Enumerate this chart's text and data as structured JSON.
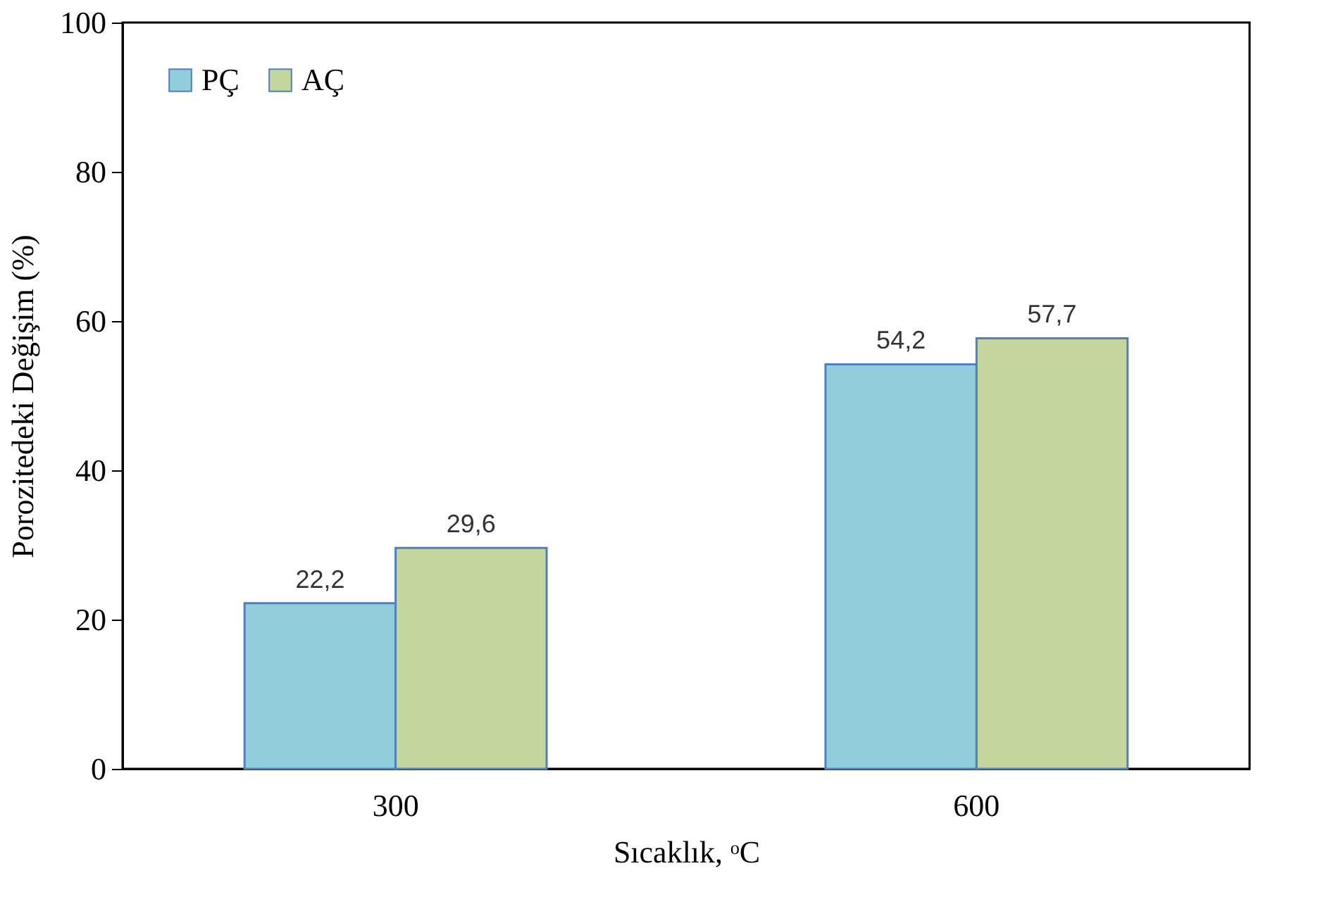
{
  "chart_data": {
    "type": "bar",
    "xlabel": "Sıcaklık, ᵒC",
    "ylabel": "Porozitedeki Değişim (%)",
    "categories": [
      "300",
      "600"
    ],
    "ylim": [
      0,
      100
    ],
    "yticks": [
      0,
      20,
      40,
      60,
      80,
      100
    ],
    "legend": "top left",
    "series": [
      {
        "name": "PÇ",
        "color": "#92cddc",
        "values": [
          22.2,
          54.2
        ],
        "value_labels": [
          "22,2",
          "54,2"
        ]
      },
      {
        "name": "AÇ",
        "color": "#c3d69b",
        "values": [
          29.6,
          57.7
        ],
        "value_labels": [
          "29,6",
          "57,7"
        ]
      }
    ]
  }
}
